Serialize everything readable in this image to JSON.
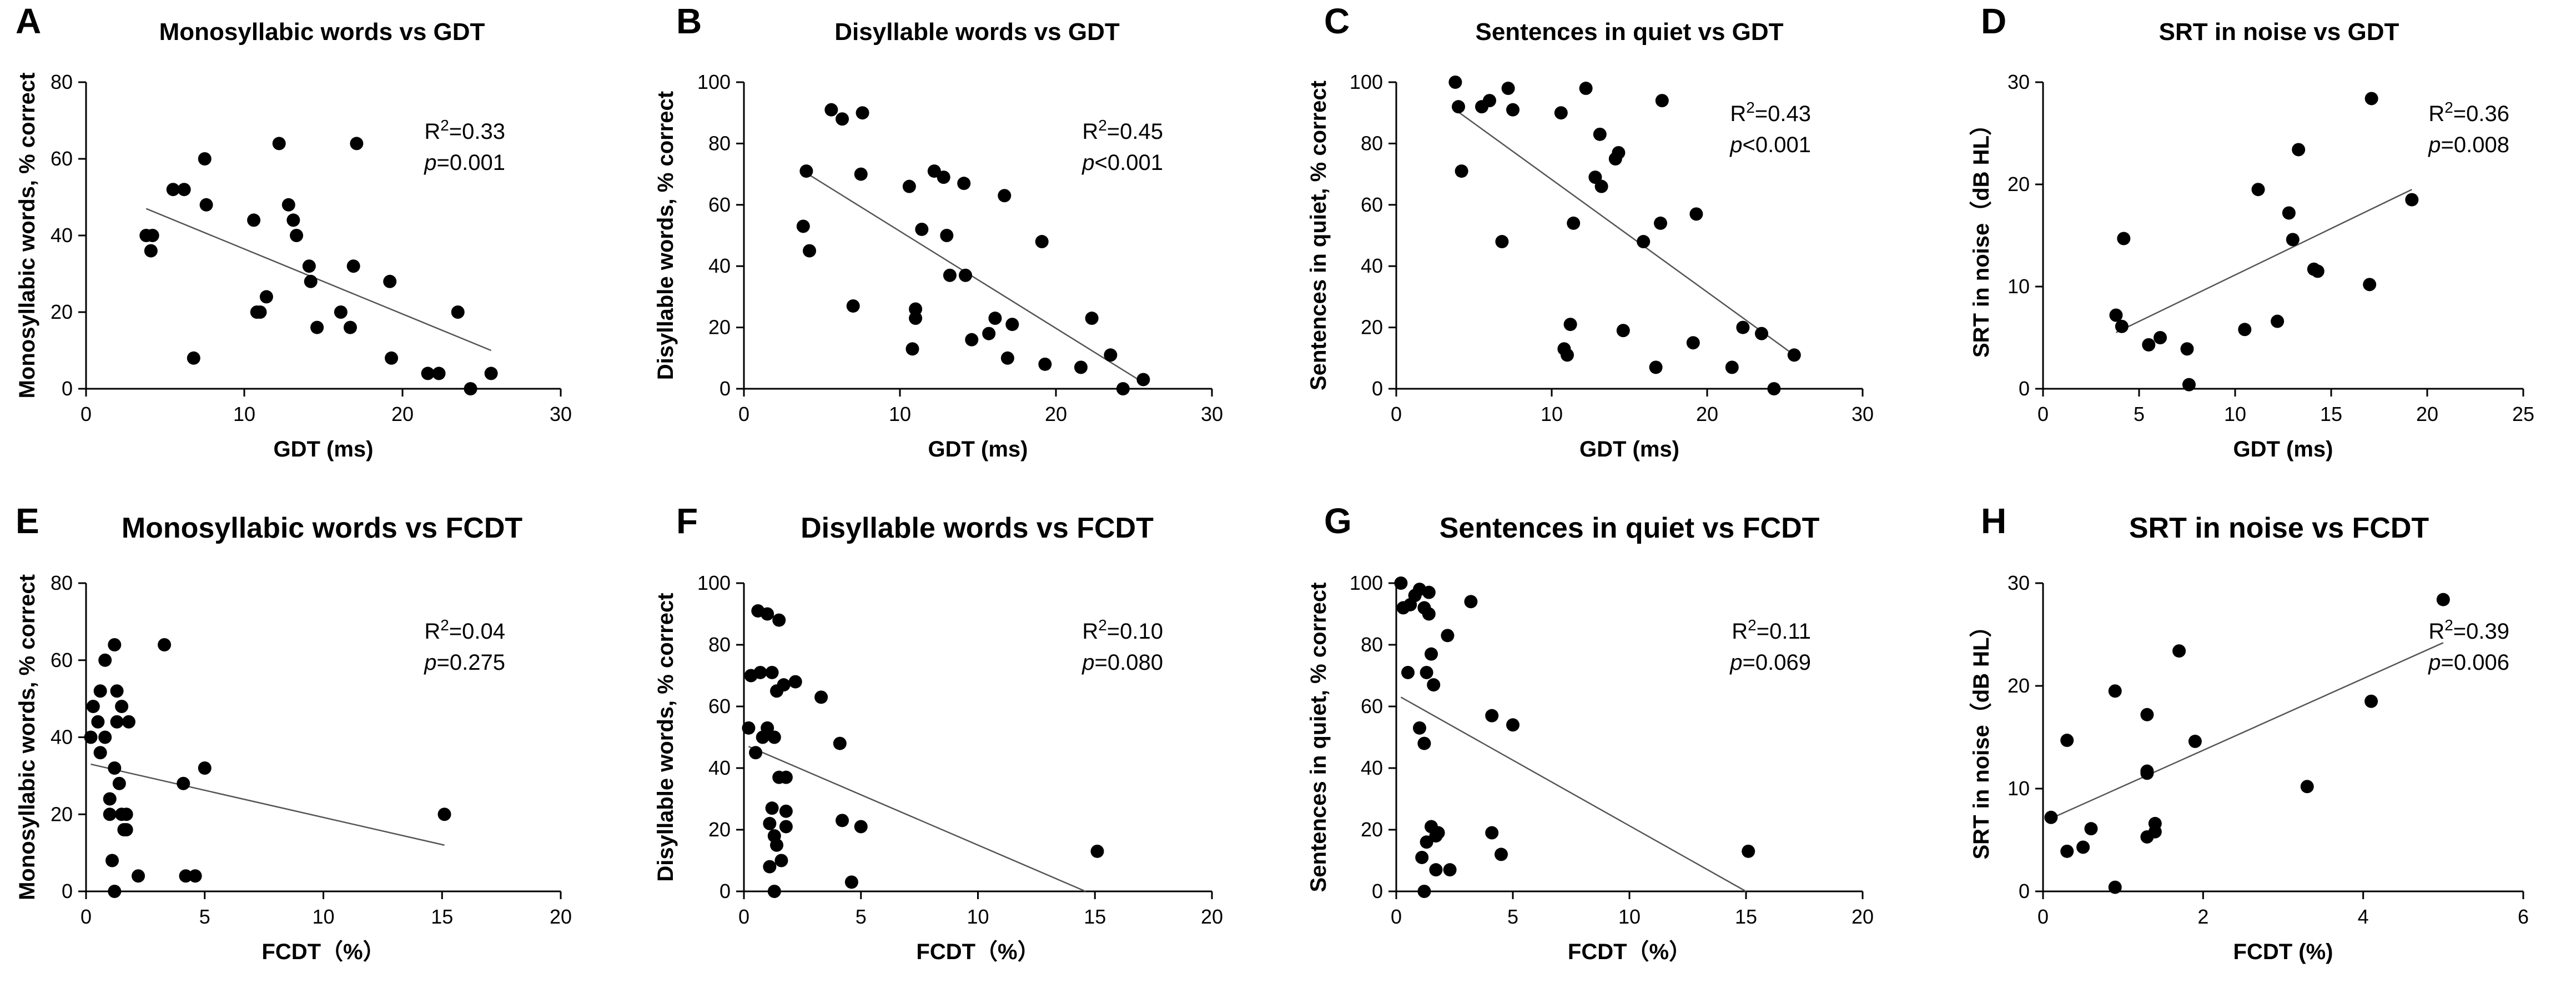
{
  "chart_data": [
    {
      "panel": "A",
      "type": "scatter",
      "title": "Monosyllabic words vs GDT",
      "xlabel": "GDT (ms)",
      "ylabel": "Monosyllabic words, % correct",
      "xlim": [
        0,
        30
      ],
      "ylim": [
        0,
        80
      ],
      "xticks": [
        0,
        10,
        20,
        30
      ],
      "yticks": [
        0,
        20,
        40,
        60,
        80
      ],
      "r2_label": "R",
      "r2_sup": "2",
      "r2_value": "=0.33",
      "p_label": "p",
      "p_value": "=0.001",
      "fit": [
        [
          3.8,
          47
        ],
        [
          25.6,
          10
        ]
      ],
      "points": [
        [
          3.8,
          40
        ],
        [
          4.1,
          36
        ],
        [
          4.2,
          40
        ],
        [
          5.5,
          52
        ],
        [
          6.2,
          52
        ],
        [
          6.8,
          8
        ],
        [
          7.5,
          60
        ],
        [
          7.6,
          48
        ],
        [
          10.6,
          44
        ],
        [
          10.8,
          20
        ],
        [
          11.0,
          20
        ],
        [
          11.4,
          24
        ],
        [
          12.2,
          64
        ],
        [
          12.8,
          48
        ],
        [
          13.1,
          44
        ],
        [
          13.3,
          40
        ],
        [
          14.1,
          32
        ],
        [
          14.2,
          28
        ],
        [
          14.6,
          16
        ],
        [
          16.1,
          20
        ],
        [
          16.7,
          16
        ],
        [
          16.9,
          32
        ],
        [
          17.1,
          64
        ],
        [
          19.2,
          28
        ],
        [
          19.3,
          8
        ],
        [
          21.6,
          4
        ],
        [
          22.3,
          4
        ],
        [
          23.5,
          20
        ],
        [
          24.3,
          0
        ],
        [
          25.6,
          4
        ]
      ]
    },
    {
      "panel": "B",
      "type": "scatter",
      "title": "Disyllable words vs GDT",
      "xlabel": "GDT (ms)",
      "ylabel": "Disyllable words, % correct",
      "xlim": [
        0,
        30
      ],
      "ylim": [
        0,
        100
      ],
      "xticks": [
        0,
        10,
        20,
        30
      ],
      "yticks": [
        0,
        20,
        40,
        60,
        80,
        100
      ],
      "r2_label": "R",
      "r2_sup": "2",
      "r2_value": "=0.45",
      "p_label": "p",
      "p_value": "<0.001",
      "fit": [
        [
          3.8,
          71
        ],
        [
          25.6,
          2
        ]
      ],
      "points": [
        [
          3.8,
          53
        ],
        [
          4.0,
          71
        ],
        [
          4.2,
          45
        ],
        [
          5.6,
          91
        ],
        [
          6.3,
          88
        ],
        [
          7.0,
          27
        ],
        [
          7.5,
          70
        ],
        [
          7.6,
          90
        ],
        [
          10.6,
          66
        ],
        [
          10.8,
          13
        ],
        [
          11.0,
          23
        ],
        [
          11.0,
          26
        ],
        [
          11.4,
          52
        ],
        [
          12.2,
          71
        ],
        [
          12.8,
          69
        ],
        [
          13.0,
          50
        ],
        [
          13.2,
          37
        ],
        [
          14.1,
          67
        ],
        [
          14.2,
          37
        ],
        [
          14.6,
          16
        ],
        [
          15.7,
          18
        ],
        [
          16.1,
          23
        ],
        [
          16.7,
          63
        ],
        [
          16.9,
          10
        ],
        [
          17.2,
          21
        ],
        [
          19.1,
          48
        ],
        [
          19.3,
          8
        ],
        [
          21.6,
          7
        ],
        [
          22.3,
          23
        ],
        [
          23.5,
          11
        ],
        [
          24.3,
          0
        ],
        [
          25.6,
          3
        ]
      ]
    },
    {
      "panel": "C",
      "type": "scatter",
      "title": "Sentences in quiet vs GDT",
      "xlabel": "GDT (ms)",
      "ylabel": "Sentences in quiet, % correct",
      "xlim": [
        0,
        30
      ],
      "ylim": [
        0,
        100
      ],
      "xticks": [
        0,
        10,
        20,
        30
      ],
      "yticks": [
        0,
        20,
        40,
        60,
        80,
        100
      ],
      "r2_label": "R",
      "r2_sup": "2",
      "r2_value": "=0.43",
      "p_label": "p",
      "p_value": "<0.001",
      "fit": [
        [
          3.8,
          91
        ],
        [
          25.6,
          11
        ]
      ],
      "points": [
        [
          3.8,
          100
        ],
        [
          4.0,
          92
        ],
        [
          4.2,
          71
        ],
        [
          5.5,
          92
        ],
        [
          6.0,
          94
        ],
        [
          6.8,
          48
        ],
        [
          7.2,
          98
        ],
        [
          7.5,
          91
        ],
        [
          10.6,
          90
        ],
        [
          10.8,
          13
        ],
        [
          11.0,
          11
        ],
        [
          11.2,
          21
        ],
        [
          11.4,
          54
        ],
        [
          12.2,
          98
        ],
        [
          12.8,
          69
        ],
        [
          13.1,
          83
        ],
        [
          13.2,
          66
        ],
        [
          14.1,
          75
        ],
        [
          14.3,
          77
        ],
        [
          14.6,
          19
        ],
        [
          15.9,
          48
        ],
        [
          16.7,
          7
        ],
        [
          17.0,
          54
        ],
        [
          17.1,
          94
        ],
        [
          19.1,
          15
        ],
        [
          19.3,
          57
        ],
        [
          21.6,
          7
        ],
        [
          22.3,
          20
        ],
        [
          23.5,
          18
        ],
        [
          24.3,
          0
        ],
        [
          25.6,
          11
        ]
      ]
    },
    {
      "panel": "D",
      "type": "scatter",
      "title": "SRT in noise vs GDT",
      "xlabel": "GDT (ms)",
      "ylabel": "SRT in noise（dB HL）",
      "xlim": [
        0,
        25
      ],
      "ylim": [
        0,
        30
      ],
      "xticks": [
        0,
        5,
        10,
        15,
        20,
        25
      ],
      "yticks": [
        0,
        10,
        20,
        30
      ],
      "r2_label": "R",
      "r2_sup": "2",
      "r2_value": "=0.36",
      "p_label": "p",
      "p_value": "=0.008",
      "fit": [
        [
          3.8,
          5.5
        ],
        [
          19.2,
          19.5
        ]
      ],
      "points": [
        [
          3.8,
          7.2
        ],
        [
          4.1,
          6.1
        ],
        [
          4.2,
          14.7
        ],
        [
          5.5,
          4.3
        ],
        [
          6.1,
          5.0
        ],
        [
          7.5,
          3.9
        ],
        [
          7.6,
          0.4
        ],
        [
          10.5,
          5.8
        ],
        [
          11.2,
          19.5
        ],
        [
          12.2,
          6.6
        ],
        [
          12.8,
          17.2
        ],
        [
          13.0,
          14.6
        ],
        [
          13.3,
          23.4
        ],
        [
          14.1,
          11.7
        ],
        [
          14.3,
          11.5
        ],
        [
          17.0,
          10.2
        ],
        [
          17.1,
          28.4
        ],
        [
          19.2,
          18.5
        ]
      ]
    },
    {
      "panel": "E",
      "type": "scatter",
      "title": "Monosyllabic words vs FCDT",
      "xlabel": "FCDT（%）",
      "ylabel": "Monosyllabic words, % correct",
      "xlim": [
        0,
        20
      ],
      "ylim": [
        0,
        80
      ],
      "xticks": [
        0,
        5,
        10,
        15,
        20
      ],
      "yticks": [
        0,
        20,
        40,
        60,
        80
      ],
      "r2_label": "R",
      "r2_sup": "2",
      "r2_value": "=0.04",
      "p_label": "p",
      "p_value": "=0.275",
      "fit": [
        [
          0.2,
          33
        ],
        [
          15.1,
          12
        ]
      ],
      "points": [
        [
          0.2,
          40
        ],
        [
          0.3,
          48
        ],
        [
          0.5,
          44
        ],
        [
          0.6,
          52
        ],
        [
          0.6,
          36
        ],
        [
          0.8,
          40
        ],
        [
          0.8,
          60
        ],
        [
          1.0,
          24
        ],
        [
          1.0,
          20
        ],
        [
          1.1,
          8
        ],
        [
          1.2,
          0
        ],
        [
          1.2,
          32
        ],
        [
          1.2,
          64
        ],
        [
          1.3,
          52
        ],
        [
          1.3,
          44
        ],
        [
          1.4,
          28
        ],
        [
          1.5,
          48
        ],
        [
          1.5,
          20
        ],
        [
          1.6,
          16
        ],
        [
          1.7,
          20
        ],
        [
          1.7,
          16
        ],
        [
          1.8,
          44
        ],
        [
          2.2,
          4
        ],
        [
          3.3,
          64
        ],
        [
          4.1,
          28
        ],
        [
          4.2,
          4
        ],
        [
          4.6,
          4
        ],
        [
          5.0,
          32
        ],
        [
          15.1,
          20
        ]
      ]
    },
    {
      "panel": "F",
      "type": "scatter",
      "title": "Disyllable words vs FCDT",
      "xlabel": "FCDT（%）",
      "ylabel": "Disyllable words, % correct",
      "xlim": [
        0,
        20
      ],
      "ylim": [
        0,
        100
      ],
      "xticks": [
        0,
        5,
        10,
        15,
        20
      ],
      "yticks": [
        0,
        20,
        40,
        60,
        80,
        100
      ],
      "r2_label": "R",
      "r2_sup": "2",
      "r2_value": "=0.10",
      "p_label": "p",
      "p_value": "=0.080",
      "fit": [
        [
          0.2,
          47
        ],
        [
          14.6,
          0
        ]
      ],
      "points": [
        [
          0.2,
          53
        ],
        [
          0.3,
          70
        ],
        [
          0.5,
          45
        ],
        [
          0.6,
          91
        ],
        [
          0.7,
          71
        ],
        [
          0.8,
          50
        ],
        [
          1.0,
          90
        ],
        [
          1.0,
          53
        ],
        [
          1.1,
          22
        ],
        [
          1.1,
          8
        ],
        [
          1.2,
          27
        ],
        [
          1.2,
          71
        ],
        [
          1.3,
          50
        ],
        [
          1.3,
          18
        ],
        [
          1.3,
          0
        ],
        [
          1.4,
          65
        ],
        [
          1.4,
          15
        ],
        [
          1.5,
          88
        ],
        [
          1.5,
          37
        ],
        [
          1.6,
          10
        ],
        [
          1.7,
          67
        ],
        [
          1.8,
          26
        ],
        [
          1.8,
          37
        ],
        [
          1.8,
          21
        ],
        [
          2.2,
          68
        ],
        [
          3.3,
          63
        ],
        [
          4.1,
          48
        ],
        [
          4.2,
          23
        ],
        [
          4.6,
          3
        ],
        [
          5.0,
          21
        ],
        [
          15.1,
          13
        ]
      ]
    },
    {
      "panel": "G",
      "type": "scatter",
      "title": "Sentences in quiet vs FCDT",
      "xlabel": "FCDT（%）",
      "ylabel": "Sentences in quiet, % correct",
      "xlim": [
        0,
        20
      ],
      "ylim": [
        0,
        100
      ],
      "xticks": [
        0,
        5,
        10,
        15,
        20
      ],
      "yticks": [
        0,
        20,
        40,
        60,
        80,
        100
      ],
      "r2_label": "R",
      "r2_sup": "2",
      "r2_value": "=0.11",
      "p_label": "p",
      "p_value": "=0.069",
      "fit": [
        [
          0.2,
          63
        ],
        [
          15.0,
          0
        ]
      ],
      "points": [
        [
          0.2,
          100
        ],
        [
          0.3,
          92
        ],
        [
          0.5,
          71
        ],
        [
          0.6,
          93
        ],
        [
          0.8,
          96
        ],
        [
          1.0,
          53
        ],
        [
          1.0,
          98
        ],
        [
          1.1,
          11
        ],
        [
          1.2,
          48
        ],
        [
          1.2,
          0
        ],
        [
          1.2,
          92
        ],
        [
          1.3,
          16
        ],
        [
          1.3,
          71
        ],
        [
          1.4,
          97
        ],
        [
          1.4,
          90
        ],
        [
          1.5,
          77
        ],
        [
          1.5,
          21
        ],
        [
          1.6,
          67
        ],
        [
          1.7,
          18
        ],
        [
          1.7,
          7
        ],
        [
          1.8,
          19
        ],
        [
          2.2,
          83
        ],
        [
          2.3,
          7
        ],
        [
          3.2,
          94
        ],
        [
          4.1,
          57
        ],
        [
          4.1,
          19
        ],
        [
          4.5,
          12
        ],
        [
          5.0,
          54
        ],
        [
          15.1,
          13
        ]
      ]
    },
    {
      "panel": "H",
      "type": "scatter",
      "title": "SRT in noise vs FCDT",
      "xlabel": "FCDT (%)",
      "ylabel": "SRT in noise（dB HL）",
      "xlim": [
        0,
        6
      ],
      "ylim": [
        0,
        30
      ],
      "xticks": [
        0,
        2,
        4,
        6
      ],
      "yticks": [
        0,
        10,
        20,
        30
      ],
      "r2_label": "R",
      "r2_sup": "2",
      "r2_value": "=0.39",
      "p_label": "p",
      "p_value": "=0.006",
      "fit": [
        [
          0.1,
          7.1
        ],
        [
          5.0,
          24.2
        ]
      ],
      "points": [
        [
          0.1,
          7.2
        ],
        [
          0.3,
          3.9
        ],
        [
          0.3,
          14.7
        ],
        [
          0.5,
          4.3
        ],
        [
          0.6,
          6.1
        ],
        [
          0.9,
          19.5
        ],
        [
          0.9,
          0.4
        ],
        [
          1.3,
          11.7
        ],
        [
          1.3,
          11.5
        ],
        [
          1.3,
          17.2
        ],
        [
          1.3,
          5.3
        ],
        [
          1.4,
          6.6
        ],
        [
          1.4,
          5.8
        ],
        [
          1.7,
          23.4
        ],
        [
          1.9,
          14.6
        ],
        [
          3.3,
          10.2
        ],
        [
          4.1,
          18.5
        ],
        [
          5.0,
          28.4
        ]
      ]
    }
  ]
}
